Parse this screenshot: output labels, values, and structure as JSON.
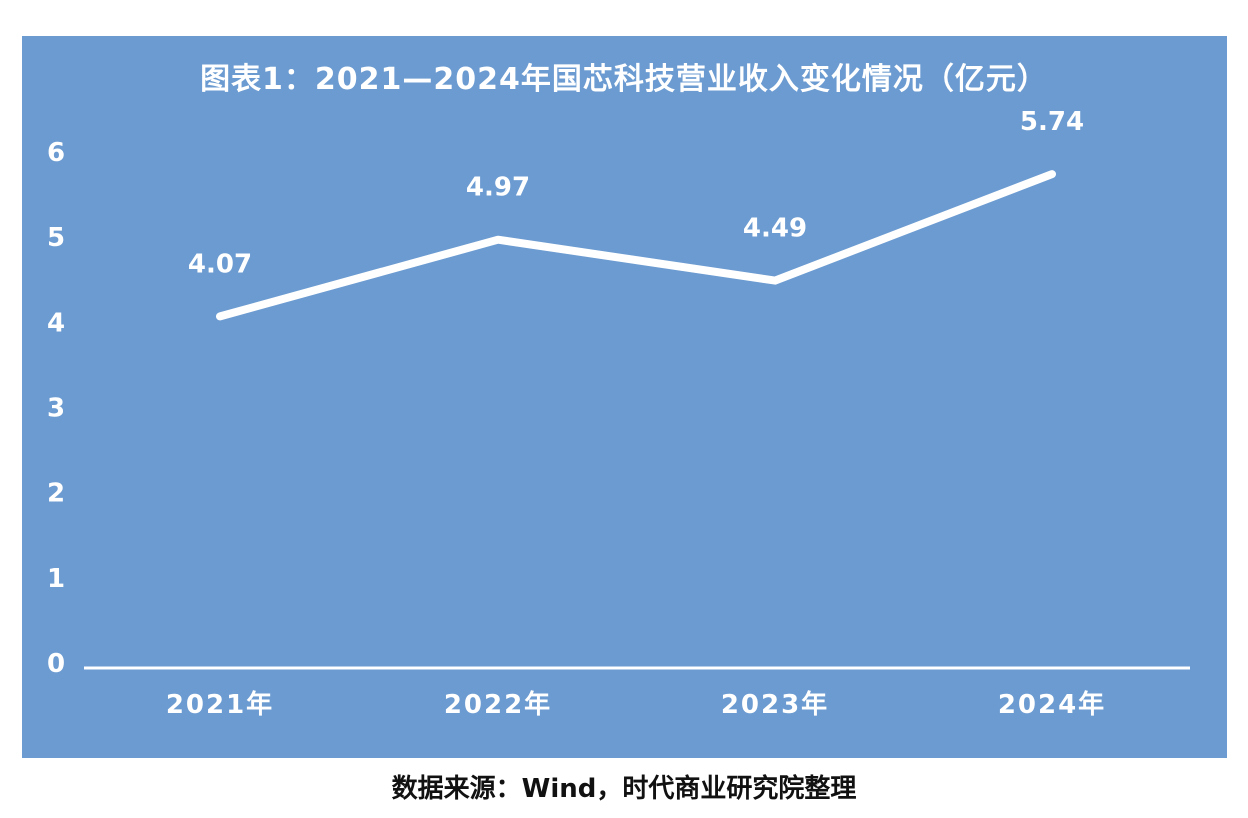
{
  "chart_data": {
    "type": "line",
    "title": "图表1：2021—2024年国芯科技营业收入变化情况（亿元）",
    "categories": [
      "2021年",
      "2022年",
      "2023年",
      "2024年"
    ],
    "values": [
      4.07,
      4.97,
      4.49,
      5.74
    ],
    "value_labels": [
      "4.07",
      "4.97",
      "4.49",
      "5.74"
    ],
    "y_ticks": [
      "0",
      "1",
      "2",
      "3",
      "4",
      "5",
      "6"
    ],
    "ylim": [
      0,
      6
    ],
    "xlabel": "",
    "ylabel": "",
    "grid": false,
    "drop_lines": true,
    "legend": "none"
  },
  "source": "数据来源：Wind，时代商业研究院整理",
  "colors": {
    "background": "#6b9bd1",
    "line": "#ffffff",
    "text": "#ffffff",
    "source_text": "#111111"
  }
}
